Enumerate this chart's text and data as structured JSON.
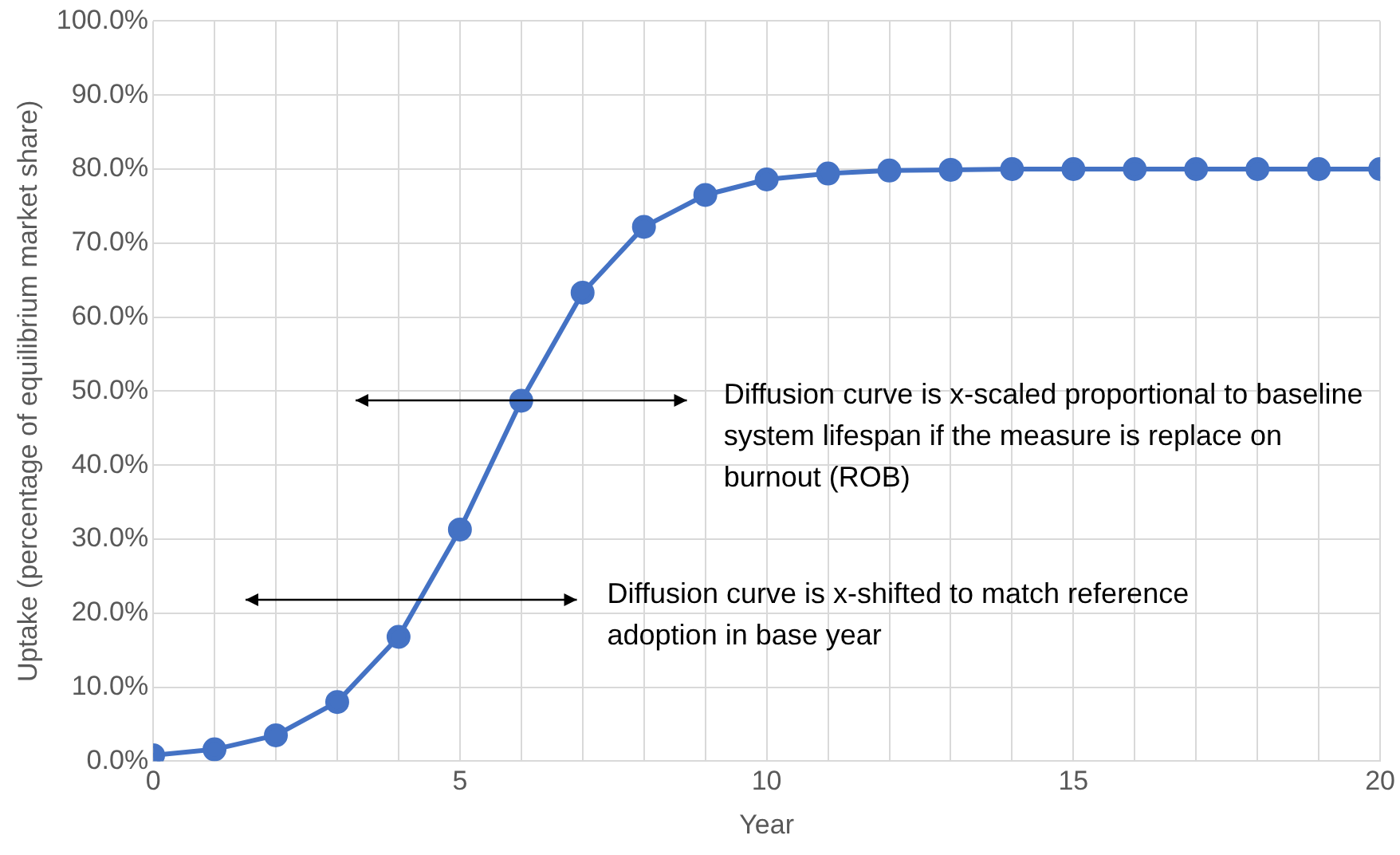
{
  "chart_data": {
    "type": "line",
    "xlabel": "Year",
    "ylabel": "Uptake (percentage of equilibrium market share)",
    "x": [
      0,
      1,
      2,
      3,
      4,
      5,
      6,
      7,
      8,
      9,
      10,
      11,
      12,
      13,
      14,
      15,
      16,
      17,
      18,
      19,
      20
    ],
    "series": [
      {
        "color": "#4472c4",
        "values": [
          0.8,
          1.6,
          3.5,
          8.0,
          16.8,
          31.3,
          48.7,
          63.3,
          72.2,
          76.5,
          78.6,
          79.4,
          79.8,
          79.9,
          80.0,
          80.0,
          80.0,
          80.0,
          80.0,
          80.0,
          80.0
        ]
      }
    ],
    "xlim": [
      0,
      20
    ],
    "xticks": [
      0,
      {
        "value": 1,
        "label": null
      },
      {
        "value": 2,
        "label": null
      },
      {
        "value": 3,
        "label": null
      },
      {
        "value": 4,
        "label": null
      },
      5,
      {
        "value": 6,
        "label": null
      },
      {
        "value": 7,
        "label": null
      },
      {
        "value": 8,
        "label": null
      },
      {
        "value": 9,
        "label": null
      },
      10,
      {
        "value": 11,
        "label": null
      },
      {
        "value": 12,
        "label": null
      },
      {
        "value": 13,
        "label": null
      },
      {
        "value": 14,
        "label": null
      },
      15,
      {
        "value": 16,
        "label": null
      },
      {
        "value": 17,
        "label": null
      },
      {
        "value": 18,
        "label": null
      },
      {
        "value": 19,
        "label": null
      },
      20
    ],
    "ylim": [
      0,
      100
    ],
    "yticks": [
      {
        "value": 0,
        "label": "0.0%"
      },
      {
        "value": 10,
        "label": "10.0%"
      },
      {
        "value": 20,
        "label": "20.0%"
      },
      {
        "value": 30,
        "label": "30.0%"
      },
      {
        "value": 40,
        "label": "40.0%"
      },
      {
        "value": 50,
        "label": "50.0%"
      },
      {
        "value": 60,
        "label": "60.0%"
      },
      {
        "value": 70,
        "label": "70.0%"
      },
      {
        "value": 80,
        "label": "80.0%"
      },
      {
        "value": 90,
        "label": "90.0%"
      },
      {
        "value": 100,
        "label": "100.0%"
      }
    ],
    "grid": true,
    "legend": false,
    "marker": "circle",
    "line_style": "solid",
    "annotations": [
      "Diffusion curve is x-scaled proportional to baseline system lifespan if the measure is replace on burnout (ROB)",
      "Diffusion curve is x-shifted to match reference adoption in base year"
    ]
  }
}
